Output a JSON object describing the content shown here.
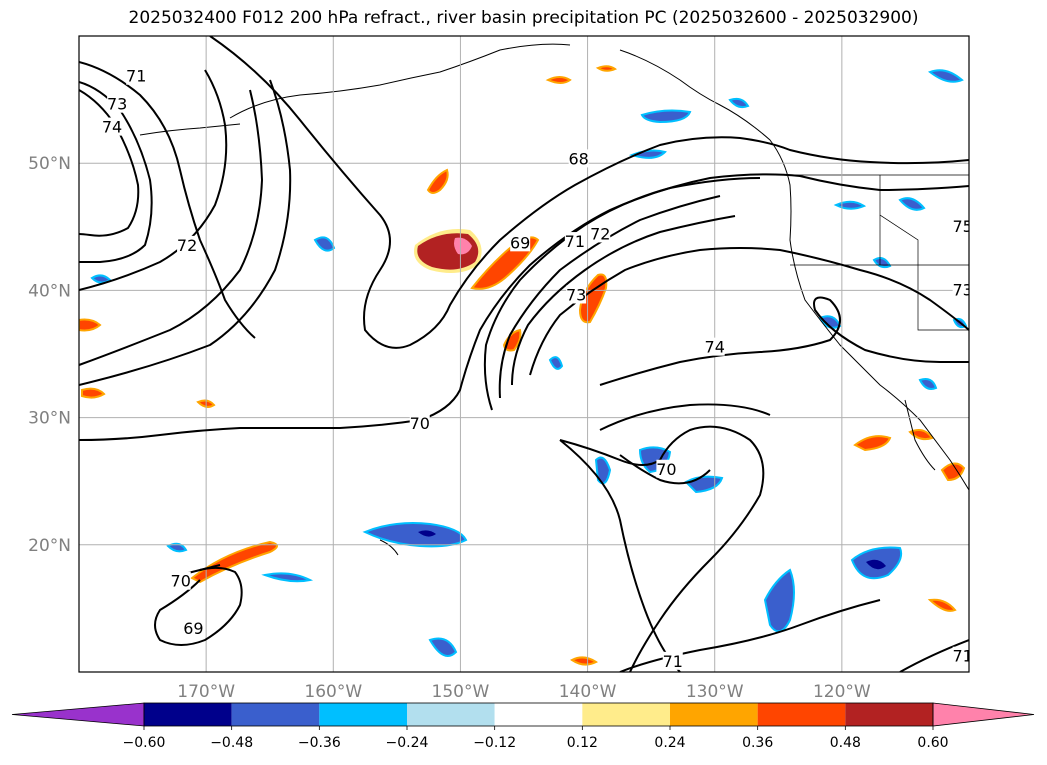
{
  "title": "2025032400 F012 200 hPa refract., river basin precipitation PC (2025032600 - 2025032900)",
  "map": {
    "lat_range": [
      10,
      60
    ],
    "lon_range": [
      -180,
      -110
    ],
    "lat_ticks": [
      {
        "value": 20,
        "label": "20°N"
      },
      {
        "value": 30,
        "label": "30°N"
      },
      {
        "value": 40,
        "label": "40°N"
      },
      {
        "value": 50,
        "label": "50°N"
      }
    ],
    "lon_ticks": [
      {
        "value": -170,
        "label": "170°W"
      },
      {
        "value": -160,
        "label": "160°W"
      },
      {
        "value": -150,
        "label": "150°W"
      },
      {
        "value": -140,
        "label": "140°W"
      },
      {
        "value": -130,
        "label": "130°W"
      },
      {
        "value": -120,
        "label": "120°W"
      }
    ],
    "tick_label_color": "#808080",
    "gridlines": true,
    "contour_labels": [
      {
        "text": "71",
        "lon": -175.5,
        "lat": 56.8
      },
      {
        "text": "73",
        "lon": -177.0,
        "lat": 54.6
      },
      {
        "text": "74",
        "lon": -177.4,
        "lat": 52.8
      },
      {
        "text": "72",
        "lon": -171.5,
        "lat": 43.5
      },
      {
        "text": "68",
        "lon": -140.7,
        "lat": 50.3
      },
      {
        "text": "69",
        "lon": -145.3,
        "lat": 43.7
      },
      {
        "text": "71",
        "lon": -141.0,
        "lat": 43.8
      },
      {
        "text": "72",
        "lon": -139.0,
        "lat": 44.4
      },
      {
        "text": "73",
        "lon": -140.9,
        "lat": 39.6
      },
      {
        "text": "74",
        "lon": -130.0,
        "lat": 35.5
      },
      {
        "text": "70",
        "lon": -153.2,
        "lat": 29.5
      },
      {
        "text": "70",
        "lon": -133.8,
        "lat": 25.9
      },
      {
        "text": "70",
        "lon": -172.0,
        "lat": 17.1
      },
      {
        "text": "69",
        "lon": -171.0,
        "lat": 13.4
      },
      {
        "text": "71",
        "lon": -133.3,
        "lat": 10.8
      },
      {
        "text": "71",
        "lon": -110.5,
        "lat": 11.2
      },
      {
        "text": "75",
        "lon": -110.5,
        "lat": 45.0
      },
      {
        "text": "73",
        "lon": -110.5,
        "lat": 40.0
      }
    ]
  },
  "colorbar": {
    "levels": [
      "−0.60",
      "−0.48",
      "−0.36",
      "−0.24",
      "−0.12",
      "0.12",
      "0.24",
      "0.36",
      "0.48",
      "0.60"
    ],
    "colors": [
      "#9932cc",
      "#00008b",
      "#3a5fcd",
      "#00bfff",
      "#b2dfee",
      "#ffffff",
      "#ffec8b",
      "#ffa500",
      "#ff4500",
      "#b22222",
      "#ff82ab"
    ],
    "extend": "both"
  }
}
